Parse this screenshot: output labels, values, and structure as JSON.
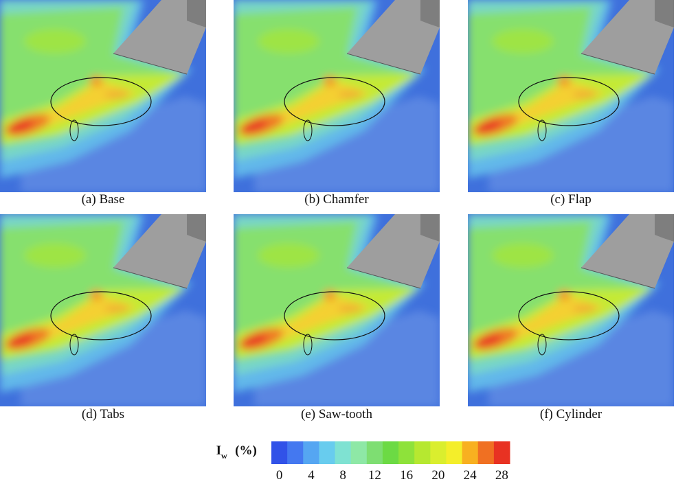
{
  "panels": [
    {
      "caption": "(a) Base"
    },
    {
      "caption": "(b) Chamfer"
    },
    {
      "caption": "(c) Flap"
    },
    {
      "caption": "(d) Tabs"
    },
    {
      "caption": "(e) Saw-tooth"
    },
    {
      "caption": "(f) Cylinder"
    }
  ],
  "colorbar": {
    "label": "I",
    "label_subscript": "w",
    "unit": "(%)",
    "levels": [
      0,
      2,
      4,
      6,
      8,
      10,
      12,
      14,
      16,
      18,
      20,
      22,
      24,
      26,
      28
    ],
    "colors": [
      "#3152e8",
      "#4478f0",
      "#55a6f2",
      "#68ccee",
      "#7fe2d2",
      "#8ee8a6",
      "#7ede72",
      "#6cda44",
      "#8ee23a",
      "#b6e830",
      "#daee2e",
      "#f4ee2a",
      "#f8b020",
      "#f07022",
      "#e83222"
    ],
    "ticks": [
      0,
      4,
      8,
      12,
      16,
      20,
      24,
      28
    ]
  }
}
